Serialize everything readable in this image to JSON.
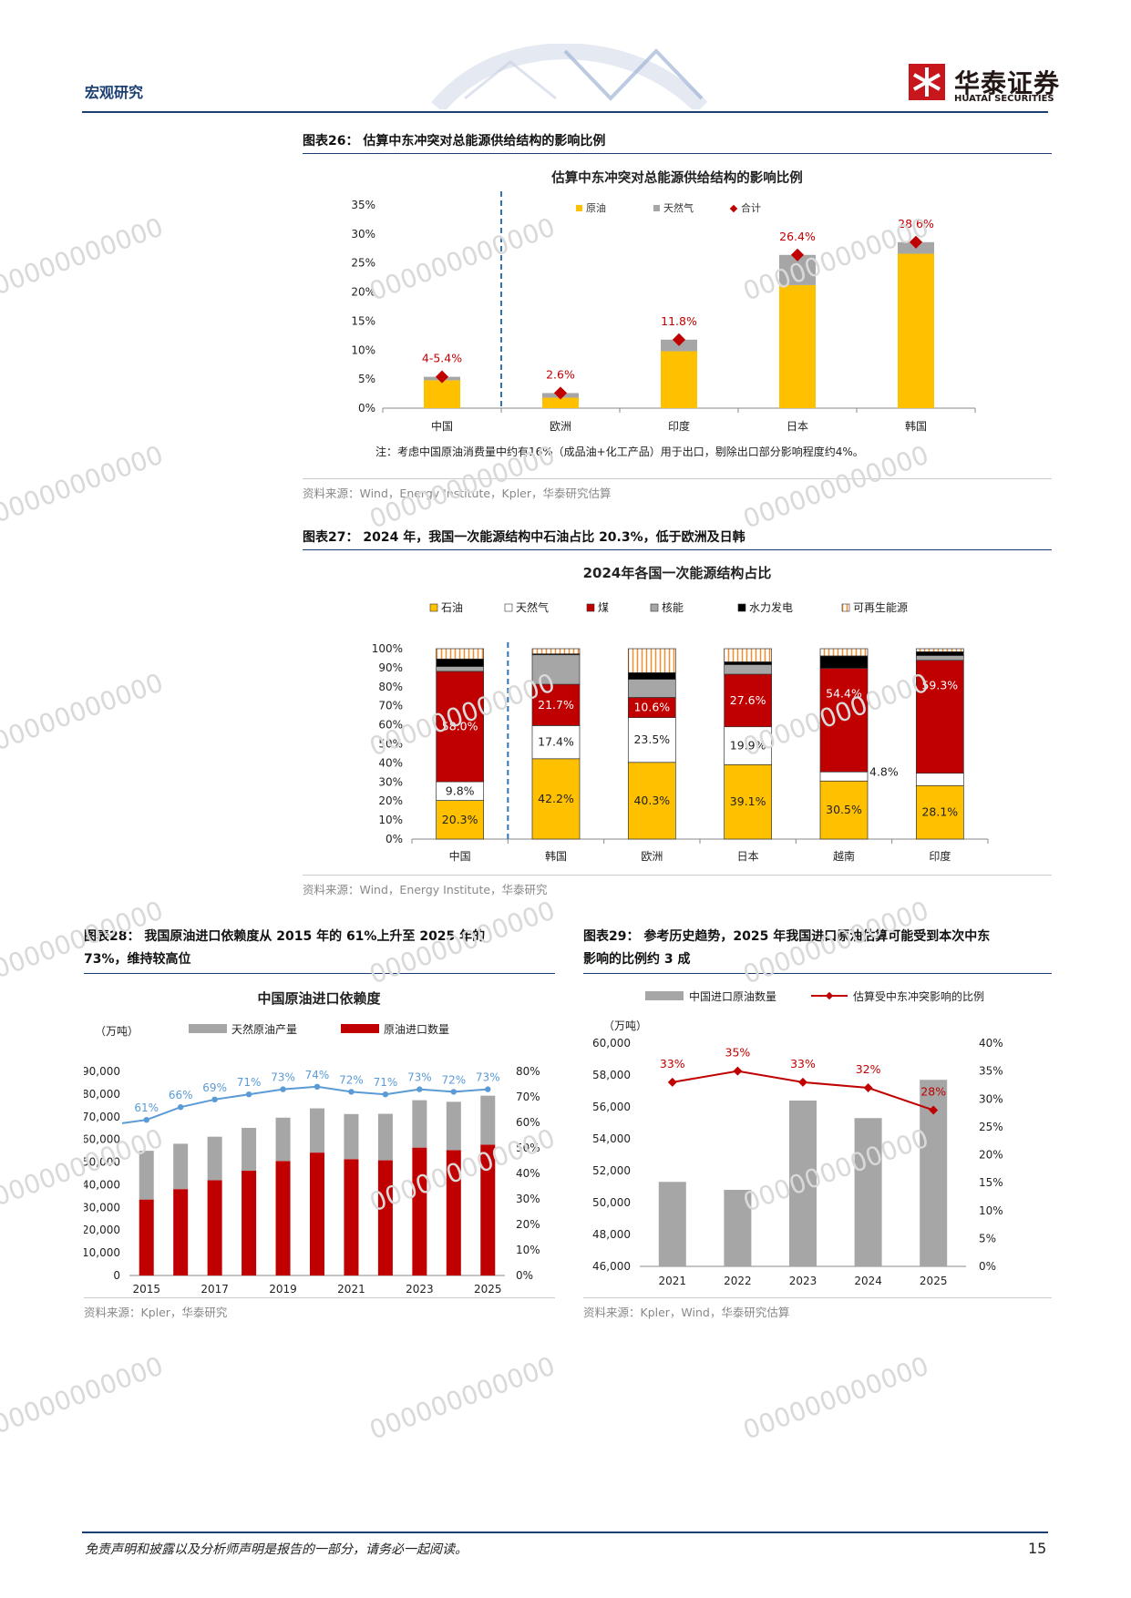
{
  "header": {
    "section": "宏观研究",
    "logo_cn": "华泰证券",
    "logo_en": "HUATAI SECURITIES"
  },
  "watermark": "000000000000",
  "fig26": {
    "caption": "图表26：  估算中东冲突对总能源供给结构的影响比例",
    "source": "资料来源：Wind，Energy Institute，Kpler，华泰研究估算",
    "note": "注：考虑中国原油消费量中约有16%（成品油+化工产品）用于出口，剔除出口部分影响程度约4%。"
  },
  "fig27": {
    "caption": "图表27：  2024 年，我国一次能源结构中石油占比 20.3%，低于欧洲及日韩",
    "source": "资料来源：Wind，Energy Institute，华泰研究"
  },
  "fig28": {
    "caption_line1": "图表28：  我国原油进口依赖度从 2015 年的 61%上升至 2025 年的",
    "caption_line2": "73%，维持较高位",
    "source": "资料来源：Kpler，华泰研究"
  },
  "fig29": {
    "caption_line1": "图表29：  参考历史趋势，2025 年我国进口原油估算可能受到本次中东",
    "caption_line2": "影响的比例约 3 成",
    "source": "资料来源：Kpler，Wind，华泰研究估算"
  },
  "footer": {
    "disclaimer": "免责声明和披露以及分析师声明是报告的一部分，请务必一起阅读。",
    "page": "15"
  },
  "colors": {
    "oil": "#FFC000",
    "gas": "#A6A6A6",
    "coal": "#C00000",
    "total": "#C00000",
    "line_blue": "#5B9BD5",
    "navy": "#1c3f73"
  },
  "chart_data": [
    {
      "id": "fig26",
      "type": "bar",
      "title": "估算中东冲突对总能源供给结构的影响比例",
      "categories": [
        "中国",
        "欧洲",
        "印度",
        "日本",
        "韩国"
      ],
      "series": [
        {
          "name": "原油",
          "values": [
            4.8,
            1.8,
            9.8,
            21.2,
            26.6
          ]
        },
        {
          "name": "天然气",
          "values": [
            0.6,
            0.8,
            2.0,
            5.2,
            2.0
          ]
        }
      ],
      "totals": {
        "name": "合计",
        "values": [
          5.4,
          2.6,
          11.8,
          26.4,
          28.6
        ],
        "labels": [
          "4-5.4%",
          "2.6%",
          "11.8%",
          "26.4%",
          "28.6%"
        ]
      },
      "ylim": [
        0,
        35
      ],
      "yticks": [
        "0%",
        "5%",
        "10%",
        "15%",
        "20%",
        "25%",
        "30%",
        "35%"
      ]
    },
    {
      "id": "fig27",
      "type": "bar",
      "title": "2024年各国一次能源结构占比",
      "categories": [
        "中国",
        "韩国",
        "欧洲",
        "日本",
        "越南",
        "印度"
      ],
      "series": [
        {
          "name": "石油",
          "values": [
            20.3,
            42.2,
            40.3,
            39.1,
            30.5,
            28.1
          ],
          "labels": [
            "20.3%",
            "42.2%",
            "40.3%",
            "39.1%",
            "30.5%",
            "28.1%"
          ]
        },
        {
          "name": "天然气",
          "values": [
            9.8,
            17.4,
            23.5,
            19.9,
            4.8,
            6.5
          ],
          "labels": [
            "9.8%",
            "17.4%",
            "23.5%",
            "19.9%",
            "4.8%",
            "6.5%"
          ]
        },
        {
          "name": "煤",
          "values": [
            58.0,
            21.7,
            10.6,
            27.6,
            54.4,
            59.3
          ],
          "labels": [
            "58.0%",
            "21.7%",
            "10.6%",
            "27.6%",
            "54.4%",
            "59.3%"
          ]
        },
        {
          "name": "核能",
          "values": [
            2.5,
            15.5,
            9.5,
            5.0,
            0.0,
            2.5
          ]
        },
        {
          "name": "水力发电",
          "values": [
            4.0,
            0.5,
            3.5,
            1.5,
            6.5,
            2.0
          ]
        },
        {
          "name": "可再生能源",
          "values": [
            5.4,
            2.7,
            12.6,
            6.9,
            3.8,
            1.6
          ]
        }
      ],
      "ylim": [
        0,
        100
      ],
      "yticks": [
        "0%",
        "10%",
        "20%",
        "30%",
        "40%",
        "50%",
        "60%",
        "70%",
        "80%",
        "90%",
        "100%"
      ]
    },
    {
      "id": "fig28",
      "type": "bar",
      "title": "中国原油进口依赖度",
      "unit": "（万吨）",
      "x": [
        "2015",
        "2016",
        "2017",
        "2018",
        "2019",
        "2020",
        "2021",
        "2022",
        "2023",
        "2024",
        "2025"
      ],
      "xticks": [
        "2015",
        "2017",
        "2019",
        "2021",
        "2023",
        "2025"
      ],
      "series": [
        {
          "name": "天然原油产量",
          "values": [
            21500,
            20000,
            19200,
            18900,
            19100,
            19500,
            19900,
            20500,
            20900,
            21300,
            21600
          ]
        },
        {
          "name": "原油进口数量",
          "values": [
            33500,
            38100,
            42000,
            46200,
            50500,
            54200,
            51300,
            50800,
            56400,
            55300,
            57700
          ]
        },
        {
          "name": "进口依赖度",
          "values": [
            61,
            66,
            69,
            71,
            73,
            74,
            72,
            71,
            73,
            72,
            73
          ],
          "labels": [
            "61%",
            "66%",
            "69%",
            "71%",
            "73%",
            "74%",
            "72%",
            "71%",
            "73%",
            "72%",
            "73%"
          ]
        }
      ],
      "ylim": [
        0,
        90000
      ],
      "y2lim": [
        0,
        80
      ],
      "yticks": [
        "0",
        "10,000",
        "20,000",
        "30,000",
        "40,000",
        "50,000",
        "60,000",
        "70,000",
        "80,000",
        "90,000"
      ],
      "y2ticks": [
        "0%",
        "10%",
        "20%",
        "30%",
        "40%",
        "50%",
        "60%",
        "70%",
        "80%"
      ]
    },
    {
      "id": "fig29",
      "type": "bar",
      "unit": "（万吨）",
      "x": [
        "2021",
        "2022",
        "2023",
        "2024",
        "2025"
      ],
      "series": [
        {
          "name": "中国进口原油数量",
          "values": [
            51300,
            50800,
            56400,
            55300,
            57700
          ]
        },
        {
          "name": "估算受中东冲突影响的比例",
          "values": [
            33,
            35,
            33,
            32,
            28
          ],
          "labels": [
            "33%",
            "35%",
            "33%",
            "32%",
            "28%"
          ]
        }
      ],
      "ylim": [
        46000,
        60000
      ],
      "y2lim": [
        0,
        40
      ],
      "yticks": [
        "46,000",
        "48,000",
        "50,000",
        "52,000",
        "54,000",
        "56,000",
        "58,000",
        "60,000"
      ],
      "y2ticks": [
        "0%",
        "5%",
        "10%",
        "15%",
        "20%",
        "25%",
        "30%",
        "35%",
        "40%"
      ]
    }
  ]
}
